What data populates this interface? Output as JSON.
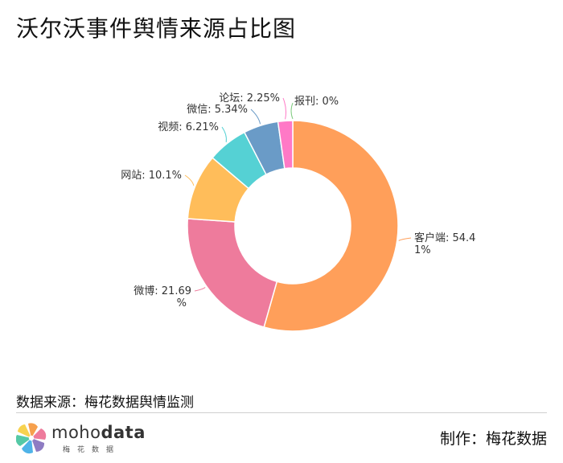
{
  "title": "沃尔沃事件舆情来源占比图",
  "source": "数据来源：梅花数据舆情监测",
  "maker": "制作：梅花数据",
  "logo": {
    "prefix": "moho",
    "suffix": "data",
    "sub": "梅花数据"
  },
  "chart_data": {
    "type": "pie",
    "donut": true,
    "slices": [
      {
        "label": "客户端",
        "value": 54.41,
        "display": [
          "客户端: 54.4",
          "1%"
        ],
        "color": "#FF9F5A"
      },
      {
        "label": "微博",
        "value": 21.69,
        "display": [
          "微博: 21.69",
          "%"
        ],
        "color": "#EE7B9C"
      },
      {
        "label": "网站",
        "value": 10.1,
        "display": [
          "网站: 10.1%"
        ],
        "color": "#FFBD5A"
      },
      {
        "label": "视频",
        "value": 6.21,
        "display": [
          "视频: 6.21%"
        ],
        "color": "#55D1D4"
      },
      {
        "label": "微信",
        "value": 5.34,
        "display": [
          "微信: 5.34%"
        ],
        "color": "#6A9BC7"
      },
      {
        "label": "论坛",
        "value": 2.25,
        "display": [
          "论坛: 2.25%"
        ],
        "color": "#FF79C6"
      },
      {
        "label": "报刊",
        "value": 0,
        "display": [
          "报刊: 0%"
        ],
        "color": "#7FCB7F"
      }
    ]
  }
}
